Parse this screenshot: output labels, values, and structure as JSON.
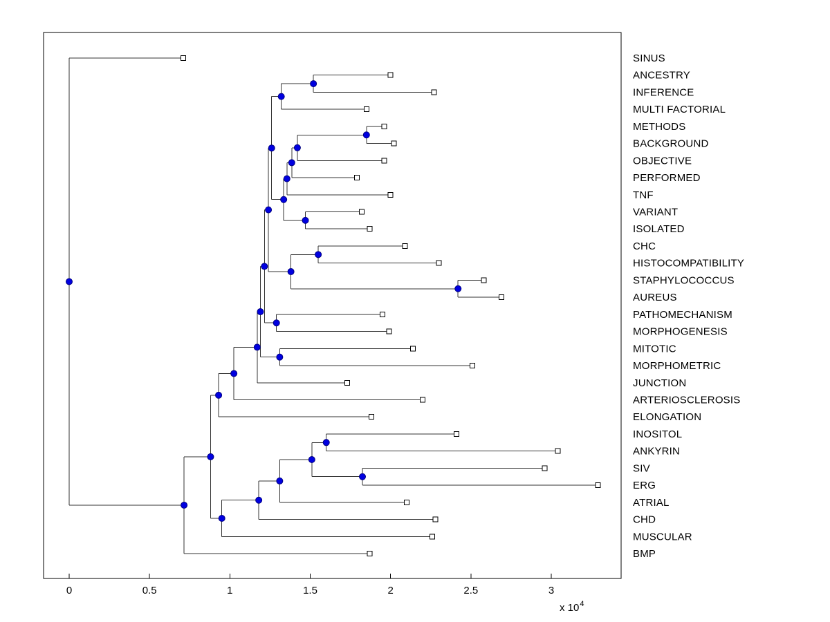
{
  "figure": {
    "background": "#ffffff"
  },
  "chart_data": {
    "type": "dendrogram",
    "orientation": "left-to-right",
    "title": "",
    "xlabel": "",
    "ylabel": "",
    "x_axis": {
      "min": -0.16,
      "max": 3.43,
      "scale_note": "values are in units of 10^4",
      "unit_prefix": "x 10",
      "unit_exponent": "4",
      "ticks": [
        {
          "v": 0,
          "label": "0"
        },
        {
          "v": 0.5,
          "label": "0.5"
        },
        {
          "v": 1,
          "label": "1"
        },
        {
          "v": 1.5,
          "label": "1.5"
        },
        {
          "v": 2,
          "label": "2"
        },
        {
          "v": 2.5,
          "label": "2.5"
        },
        {
          "v": 3,
          "label": "3"
        }
      ]
    },
    "colors": {
      "axis": "#000000",
      "branch": "#333333",
      "leaf_fill": "#ffffff",
      "leaf_edge": "#000000",
      "internal_fill": "#0000e0",
      "internal_edge": "#000080"
    },
    "leaves": [
      {
        "name": "SINUS",
        "x": 0.71
      },
      {
        "name": "ANCESTRY",
        "x": 2.0
      },
      {
        "name": "INFERENCE",
        "x": 2.27
      },
      {
        "name": "MULTI FACTORIAL",
        "x": 1.85
      },
      {
        "name": "METHODS",
        "x": 1.96
      },
      {
        "name": "BACKGROUND",
        "x": 2.02
      },
      {
        "name": "OBJECTIVE",
        "x": 1.96
      },
      {
        "name": "PERFORMED",
        "x": 1.79
      },
      {
        "name": "TNF",
        "x": 2.0
      },
      {
        "name": "VARIANT",
        "x": 1.82
      },
      {
        "name": "ISOLATED",
        "x": 1.87
      },
      {
        "name": "CHC",
        "x": 2.09
      },
      {
        "name": "HISTOCOMPATIBILITY",
        "x": 2.3
      },
      {
        "name": "STAPHYLOCOCCUS",
        "x": 2.58
      },
      {
        "name": "AUREUS",
        "x": 2.69
      },
      {
        "name": "PATHOMECHANISM",
        "x": 1.95
      },
      {
        "name": "MORPHOGENESIS",
        "x": 1.99
      },
      {
        "name": "MITOTIC",
        "x": 2.14
      },
      {
        "name": "MORPHOMETRIC",
        "x": 2.51
      },
      {
        "name": "JUNCTION",
        "x": 1.73
      },
      {
        "name": "ARTERIOSCLEROSIS",
        "x": 2.2
      },
      {
        "name": "ELONGATION",
        "x": 1.88
      },
      {
        "name": "INOSITOL",
        "x": 2.41
      },
      {
        "name": "ANKYRIN",
        "x": 3.04
      },
      {
        "name": "SIV",
        "x": 2.96
      },
      {
        "name": "ERG",
        "x": 3.29
      },
      {
        "name": "ATRIAL",
        "x": 2.1
      },
      {
        "name": "CHD",
        "x": 2.28
      },
      {
        "name": "MUSCULAR",
        "x": 2.26
      },
      {
        "name": "BMP",
        "x": 1.87
      }
    ],
    "tree": {
      "x": 0,
      "children": [
        {
          "leaf": "SINUS"
        },
        {
          "x": 0.715,
          "children": [
            {
              "x": 0.88,
              "children": [
                {
                  "x": 0.93,
                  "children": [
                    {
                      "x": 1.025,
                      "children": [
                        {
                          "x": 1.17,
                          "children": [
                            {
                              "x": 1.19,
                              "children": [
                                {
                                  "x": 1.215,
                                  "children": [
                                    {
                                      "x": 1.24,
                                      "children": [
                                        {
                                          "x": 1.26,
                                          "children": [
                                            {
                                              "x": 1.32,
                                              "children": [
                                                {
                                                  "x": 1.52,
                                                  "children": [
                                                    {
                                                      "leaf": "ANCESTRY"
                                                    },
                                                    {
                                                      "leaf": "INFERENCE"
                                                    }
                                                  ]
                                                },
                                                {
                                                  "leaf": "MULTI FACTORIAL"
                                                }
                                              ]
                                            },
                                            {
                                              "x": 1.335,
                                              "children": [
                                                {
                                                  "x": 1.355,
                                                  "children": [
                                                    {
                                                      "x": 1.385,
                                                      "children": [
                                                        {
                                                          "x": 1.42,
                                                          "children": [
                                                            {
                                                              "x": 1.85,
                                                              "children": [
                                                                {
                                                                  "leaf": "METHODS"
                                                                },
                                                                {
                                                                  "leaf": "BACKGROUND"
                                                                }
                                                              ]
                                                            },
                                                            {
                                                              "leaf": "OBJECTIVE"
                                                            }
                                                          ]
                                                        },
                                                        {
                                                          "leaf": "PERFORMED"
                                                        }
                                                      ]
                                                    },
                                                    {
                                                      "leaf": "TNF"
                                                    }
                                                  ]
                                                },
                                                {
                                                  "x": 1.47,
                                                  "children": [
                                                    {
                                                      "leaf": "VARIANT"
                                                    },
                                                    {
                                                      "leaf": "ISOLATED"
                                                    }
                                                  ]
                                                }
                                              ]
                                            }
                                          ]
                                        },
                                        {
                                          "x": 1.38,
                                          "children": [
                                            {
                                              "x": 1.55,
                                              "children": [
                                                {
                                                  "leaf": "CHC"
                                                },
                                                {
                                                  "leaf": "HISTOCOMPATIBILITY"
                                                }
                                              ]
                                            },
                                            {
                                              "x": 2.42,
                                              "children": [
                                                {
                                                  "leaf": "STAPHYLOCOCCUS"
                                                },
                                                {
                                                  "leaf": "AUREUS"
                                                }
                                              ]
                                            }
                                          ]
                                        }
                                      ]
                                    },
                                    {
                                      "x": 1.29,
                                      "children": [
                                        {
                                          "leaf": "PATHOMECHANISM"
                                        },
                                        {
                                          "leaf": "MORPHOGENESIS"
                                        }
                                      ]
                                    }
                                  ]
                                },
                                {
                                  "x": 1.31,
                                  "children": [
                                    {
                                      "leaf": "MITOTIC"
                                    },
                                    {
                                      "leaf": "MORPHOMETRIC"
                                    }
                                  ]
                                }
                              ]
                            },
                            {
                              "leaf": "JUNCTION"
                            }
                          ]
                        },
                        {
                          "leaf": "ARTERIOSCLEROSIS"
                        }
                      ]
                    },
                    {
                      "leaf": "ELONGATION"
                    }
                  ]
                },
                {
                  "x": 0.95,
                  "children": [
                    {
                      "x": 1.18,
                      "children": [
                        {
                          "x": 1.31,
                          "children": [
                            {
                              "x": 1.51,
                              "children": [
                                {
                                  "x": 1.6,
                                  "children": [
                                    {
                                      "leaf": "INOSITOL"
                                    },
                                    {
                                      "leaf": "ANKYRIN"
                                    }
                                  ]
                                },
                                {
                                  "x": 1.825,
                                  "children": [
                                    {
                                      "leaf": "SIV"
                                    },
                                    {
                                      "leaf": "ERG"
                                    }
                                  ]
                                }
                              ]
                            },
                            {
                              "leaf": "ATRIAL"
                            }
                          ]
                        },
                        {
                          "leaf": "CHD"
                        }
                      ]
                    },
                    {
                      "leaf": "MUSCULAR"
                    }
                  ]
                }
              ]
            },
            {
              "leaf": "BMP"
            }
          ]
        }
      ]
    }
  }
}
